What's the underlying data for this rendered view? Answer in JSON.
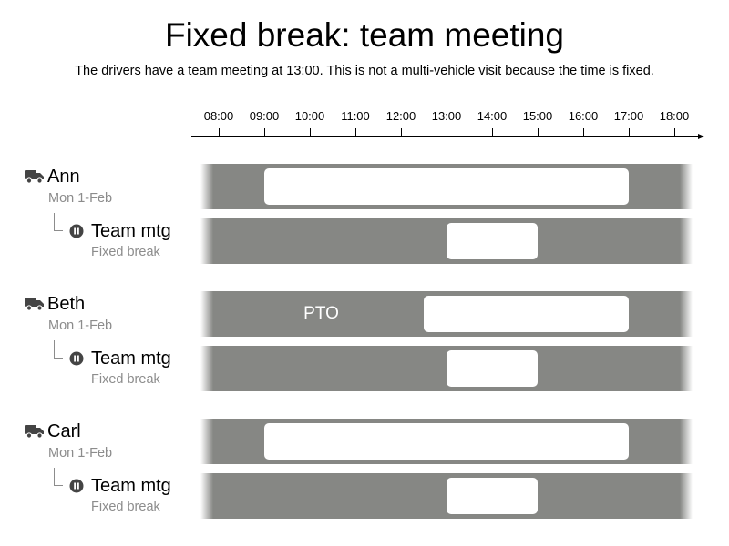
{
  "title": "Fixed break: team meeting",
  "subtitle": "The drivers have a team meeting at 13:00. This is not a multi-vehicle visit because the time is fixed.",
  "axis": {
    "ticks": [
      "08:00",
      "09:00",
      "10:00",
      "11:00",
      "12:00",
      "13:00",
      "14:00",
      "15:00",
      "16:00",
      "17:00",
      "18:00"
    ]
  },
  "colors": {
    "band": "#868784",
    "block": "#ffffff",
    "muted_text": "#8c8c8c",
    "icon": "#444444"
  },
  "drivers": [
    {
      "name": "Ann",
      "date": "Mon 1-Feb",
      "icon": "truck-icon",
      "shift": {
        "start": "09:00",
        "end": "17:00"
      },
      "pto": null,
      "break": {
        "name": "Team mtg",
        "type": "Fixed break",
        "icon": "pause-icon",
        "start": "13:00",
        "end": "15:00"
      }
    },
    {
      "name": "Beth",
      "date": "Mon 1-Feb",
      "icon": "truck-icon",
      "shift": {
        "start": "12:30",
        "end": "17:00"
      },
      "pto": {
        "label": "PTO",
        "start": "08:00",
        "end": "12:30"
      },
      "break": {
        "name": "Team mtg",
        "type": "Fixed break",
        "icon": "pause-icon",
        "start": "13:00",
        "end": "15:00"
      }
    },
    {
      "name": "Carl",
      "date": "Mon 1-Feb",
      "icon": "truck-icon",
      "shift": {
        "start": "09:00",
        "end": "17:00"
      },
      "pto": null,
      "break": {
        "name": "Team mtg",
        "type": "Fixed break",
        "icon": "pause-icon",
        "start": "13:00",
        "end": "15:00"
      }
    }
  ]
}
